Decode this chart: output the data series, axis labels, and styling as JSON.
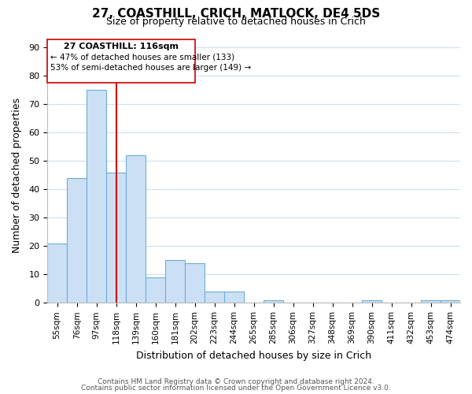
{
  "title": "27, COASTHILL, CRICH, MATLOCK, DE4 5DS",
  "subtitle": "Size of property relative to detached houses in Crich",
  "xlabel": "Distribution of detached houses by size in Crich",
  "ylabel": "Number of detached properties",
  "footer_line1": "Contains HM Land Registry data © Crown copyright and database right 2024.",
  "footer_line2": "Contains public sector information licensed under the Open Government Licence v3.0.",
  "bin_labels": [
    "55sqm",
    "76sqm",
    "97sqm",
    "118sqm",
    "139sqm",
    "160sqm",
    "181sqm",
    "202sqm",
    "223sqm",
    "244sqm",
    "265sqm",
    "285sqm",
    "306sqm",
    "327sqm",
    "348sqm",
    "369sqm",
    "390sqm",
    "411sqm",
    "432sqm",
    "453sqm",
    "474sqm"
  ],
  "bar_heights": [
    21,
    44,
    75,
    46,
    52,
    9,
    15,
    14,
    4,
    4,
    0,
    1,
    0,
    0,
    0,
    0,
    1,
    0,
    0,
    1,
    1
  ],
  "bar_color": "#cce0f5",
  "bar_edge_color": "#6baed6",
  "vline_x_idx": 3,
  "vline_color": "#cc0000",
  "ylim": [
    0,
    90
  ],
  "yticks": [
    0,
    10,
    20,
    30,
    40,
    50,
    60,
    70,
    80,
    90
  ],
  "annotation_title": "27 COASTHILL: 116sqm",
  "annotation_line1": "← 47% of detached houses are smaller (133)",
  "annotation_line2": "53% of semi-detached houses are larger (149) →",
  "background_color": "#ffffff",
  "grid_color": "#d0dff0"
}
